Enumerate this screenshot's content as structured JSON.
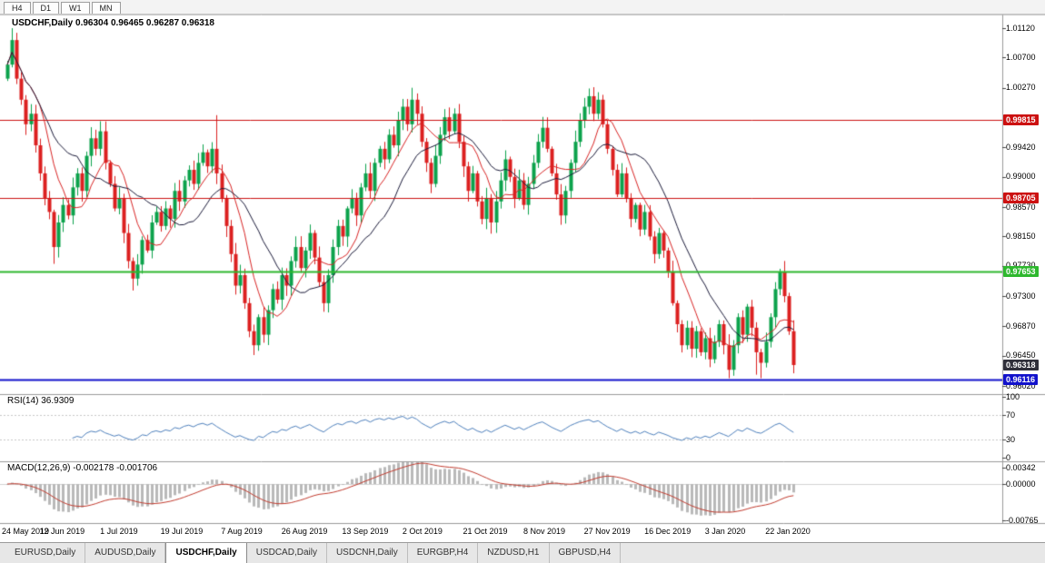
{
  "top_toolbar": {
    "period_tabs": [
      {
        "label": "H4"
      },
      {
        "label": "D1"
      },
      {
        "label": "W1"
      },
      {
        "label": "MN"
      }
    ]
  },
  "chart": {
    "title": "USDCHF,Daily",
    "quote_ohlc": "0.96304 0.96465 0.96287 0.96318"
  },
  "chart_data": {
    "type": "candlestick",
    "symbol": "USDCHF",
    "timeframe": "Daily",
    "x_label_step": 13,
    "x_labels": [
      "24 May 2019",
      "12 Jun 2019",
      "1 Jul 2019",
      "19 Jul 2019",
      "7 Aug 2019",
      "26 Aug 2019",
      "13 Sep 2019",
      "2 Oct 2019",
      "21 Oct 2019",
      "8 Nov 2019",
      "27 Nov 2019",
      "16 Dec 2019",
      "3 Jan 2020",
      "22 Jan 2020"
    ],
    "y_ticks": [
      "1.01120",
      "1.00700",
      "1.00270",
      "0.99420",
      "0.99000",
      "0.98570",
      "0.98150",
      "0.97730",
      "0.97300",
      "0.96870",
      "0.96450",
      "0.96020"
    ],
    "open_first": 1.004,
    "closes": [
      1.006,
      1.0095,
      1.004,
      1.001,
      0.9975,
      0.999,
      0.9945,
      0.9905,
      0.987,
      0.985,
      0.98,
      0.9835,
      0.986,
      0.9845,
      0.9885,
      0.9905,
      0.988,
      0.993,
      0.9955,
      0.994,
      0.9965,
      0.992,
      0.989,
      0.9855,
      0.987,
      0.982,
      0.978,
      0.9755,
      0.9775,
      0.981,
      0.9795,
      0.9835,
      0.985,
      0.983,
      0.9855,
      0.984,
      0.988,
      0.9865,
      0.9895,
      0.991,
      0.989,
      0.992,
      0.9935,
      0.9915,
      0.994,
      0.9905,
      0.987,
      0.983,
      0.979,
      0.9745,
      0.976,
      0.972,
      0.968,
      0.966,
      0.97,
      0.9675,
      0.971,
      0.974,
      0.9725,
      0.976,
      0.9745,
      0.978,
      0.98,
      0.977,
      0.9795,
      0.982,
      0.9785,
      0.975,
      0.972,
      0.976,
      0.98,
      0.983,
      0.9815,
      0.9855,
      0.987,
      0.9845,
      0.9885,
      0.9905,
      0.988,
      0.992,
      0.994,
      0.9925,
      0.996,
      0.9945,
      0.998,
      1.0,
      0.9975,
      1.001,
      0.999,
      0.995,
      0.992,
      0.989,
      0.993,
      0.996,
      0.9985,
      0.9965,
      0.999,
      0.995,
      0.9915,
      0.988,
      0.9905,
      0.9865,
      0.984,
      0.987,
      0.9835,
      0.9865,
      0.9895,
      0.9925,
      0.99,
      0.987,
      0.9895,
      0.986,
      0.989,
      0.992,
      0.995,
      0.997,
      0.994,
      0.9905,
      0.9875,
      0.9845,
      0.988,
      0.992,
      0.995,
      0.998,
      1.0,
      1.0015,
      0.999,
      1.001,
      0.9975,
      0.994,
      0.991,
      0.9875,
      0.9905,
      0.987,
      0.984,
      0.986,
      0.9825,
      0.985,
      0.9815,
      0.979,
      0.982,
      0.9795,
      0.9765,
      0.972,
      0.969,
      0.966,
      0.9685,
      0.9655,
      0.968,
      0.965,
      0.967,
      0.964,
      0.9665,
      0.969,
      0.966,
      0.9625,
      0.966,
      0.97,
      0.9675,
      0.9715,
      0.9685,
      0.965,
      0.9635,
      0.9665,
      0.97,
      0.974,
      0.9765,
      0.973,
      0.968,
      0.96318
    ],
    "wick_overrides": {
      "1": [
        1.0112,
        null
      ],
      "10": [
        null,
        0.9776
      ],
      "27": [
        null,
        0.9738
      ],
      "45": [
        0.9988,
        null
      ],
      "53": [
        null,
        0.9646
      ],
      "87": [
        1.0027,
        null
      ],
      "125": [
        1.0026,
        null
      ],
      "155": [
        null,
        0.9613
      ],
      "161": [
        null,
        0.9618
      ],
      "162": [
        null,
        0.9613
      ],
      "166": [
        0.9769,
        null
      ],
      "169": [
        null,
        0.962
      ]
    },
    "levels": [
      {
        "label": "0.99815",
        "value": 0.99815,
        "line_color": "#cc1111",
        "line_width": 1,
        "badge_bg": "#cc1111"
      },
      {
        "label": "0.98705",
        "value": 0.98705,
        "line_color": "#cc1111",
        "line_width": 1,
        "badge_bg": "#cc1111"
      },
      {
        "label": "0.97653",
        "value": 0.97653,
        "line_color": "#2eb82e",
        "line_width": 2,
        "badge_bg": "#2eb82e"
      },
      {
        "label": "0.96116",
        "value": 0.96116,
        "line_color": "#1212cc",
        "line_width": 2,
        "badge_bg": "#1212cc"
      },
      {
        "label": "0.96318",
        "value": 0.96318,
        "line_color": null,
        "line_width": 0,
        "badge_bg": "#30303a"
      }
    ],
    "moving_averages": [
      {
        "period": 8,
        "color": "#d92525"
      },
      {
        "period": 16,
        "color": "#1b1b3a"
      }
    ],
    "colors": {
      "up": "#0ca24c",
      "down": "#dc2020"
    },
    "rsi": {
      "label": "RSI(14)",
      "value": "36.9309",
      "period": 14,
      "ticks": [
        "100",
        "70",
        "30",
        "0"
      ],
      "dashed_levels": [
        70,
        30
      ],
      "color": "#4f81bd"
    },
    "macd": {
      "label": "MACD(12,26,9)",
      "values": "-0.002178 -0.001706",
      "fast": 12,
      "slow": 26,
      "signal": 9,
      "ticks": [
        "0.00342",
        "0.00000",
        "-0.00765"
      ],
      "hist_color": "#b9b9b9",
      "signal_color": "#c23b2e"
    }
  },
  "bottom_tabs": {
    "active_index": 2,
    "tabs": [
      {
        "label": "EURUSD,Daily"
      },
      {
        "label": "AUDUSD,Daily"
      },
      {
        "label": "USDCHF,Daily"
      },
      {
        "label": "USDCAD,Daily"
      },
      {
        "label": "USDCNH,Daily"
      },
      {
        "label": "EURGBP,H4"
      },
      {
        "label": "NZDUSD,H1"
      },
      {
        "label": "GBPUSD,H4"
      }
    ]
  }
}
